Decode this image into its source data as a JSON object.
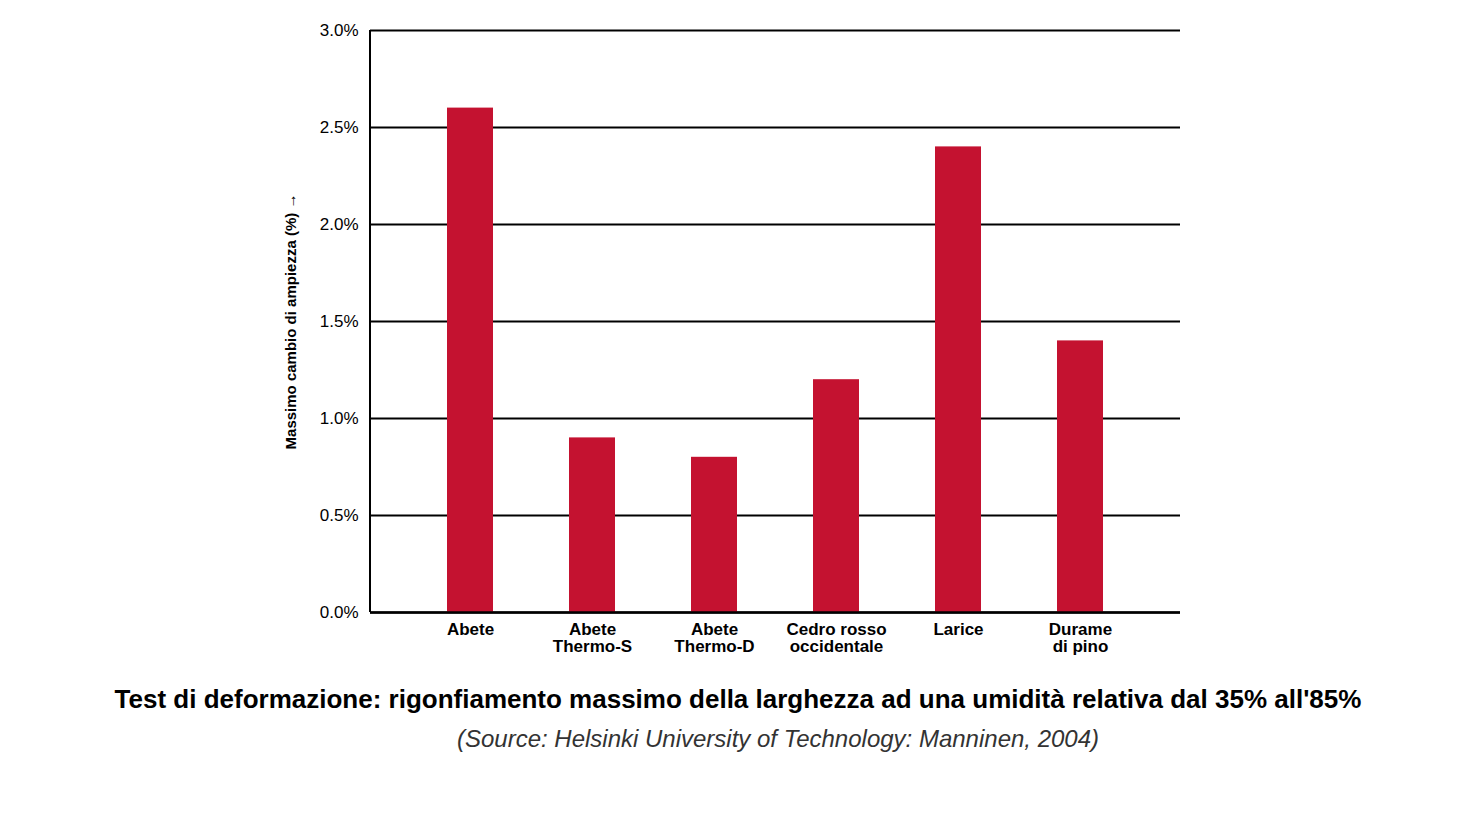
{
  "chart_data": {
    "type": "bar",
    "title": "Test di deformazione: rigonfiamento massimo della larghezza ad una umidità relativa dal 35% all'85%",
    "caption": "(Source: Helsinki University of Technology: Manninen, 2004)",
    "y_label": "Massimo cambio di ampiezza (%)",
    "categories": [
      "Abete",
      "Abete\nThermo-S",
      "Abete\nThermo-D",
      "Cedro rosso\noccidentale",
      "Larice",
      "Durame\ndi pino"
    ],
    "values": [
      2.6,
      0.9,
      0.8,
      1.2,
      2.4,
      1.4
    ],
    "color": "#c41230",
    "ylim": [
      0,
      3
    ],
    "yticks": [
      {
        "value": 0,
        "label": "0.0%"
      },
      {
        "value": 0.5,
        "label": "0.5%"
      },
      {
        "value": 1,
        "label": "1.0%"
      },
      {
        "value": 1.5,
        "label": "1.5%"
      },
      {
        "value": 2,
        "label": "2.0%"
      },
      {
        "value": 2.5,
        "label": "2.5%"
      },
      {
        "value": 3,
        "label": "3.0%"
      }
    ],
    "grid": true
  }
}
